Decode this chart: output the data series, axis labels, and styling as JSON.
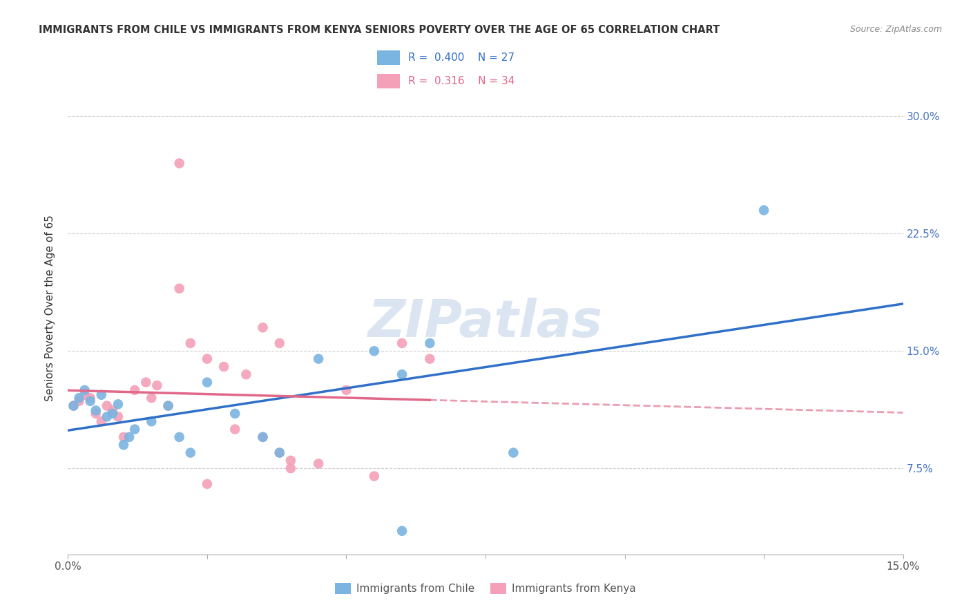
{
  "title": "IMMIGRANTS FROM CHILE VS IMMIGRANTS FROM KENYA SENIORS POVERTY OVER THE AGE OF 65 CORRELATION CHART",
  "source": "Source: ZipAtlas.com",
  "ylabel": "Seniors Poverty Over the Age of 65",
  "xlim": [
    0.0,
    0.15
  ],
  "ylim": [
    0.02,
    0.335
  ],
  "xticks": [
    0.0,
    0.025,
    0.05,
    0.075,
    0.1,
    0.125,
    0.15
  ],
  "xticklabels": [
    "0.0%",
    "",
    "",
    "",
    "",
    "",
    "15.0%"
  ],
  "ytick_positions": [
    0.075,
    0.15,
    0.225,
    0.3
  ],
  "ytick_labels": [
    "7.5%",
    "15.0%",
    "22.5%",
    "30.0%"
  ],
  "chile_color": "#7ab4e0",
  "kenya_color": "#f4a0b8",
  "chile_line_color": "#3070c8",
  "kenya_line_color": "#e06888",
  "legend_r_chile": "R = 0.400",
  "legend_n_chile": "N = 27",
  "legend_r_kenya": "R = 0.316",
  "legend_n_kenya": "N = 34",
  "chile_label": "Immigrants from Chile",
  "kenya_label": "Immigrants from Kenya",
  "watermark": "ZIPatlas",
  "chile_scatter_x": [
    0.001,
    0.002,
    0.003,
    0.004,
    0.005,
    0.006,
    0.007,
    0.008,
    0.009,
    0.01,
    0.011,
    0.012,
    0.015,
    0.018,
    0.02,
    0.022,
    0.025,
    0.03,
    0.035,
    0.038,
    0.045,
    0.055,
    0.06,
    0.065,
    0.08,
    0.125,
    0.06
  ],
  "chile_scatter_y": [
    0.115,
    0.12,
    0.125,
    0.118,
    0.112,
    0.122,
    0.108,
    0.11,
    0.116,
    0.09,
    0.095,
    0.1,
    0.105,
    0.115,
    0.095,
    0.085,
    0.13,
    0.11,
    0.095,
    0.085,
    0.145,
    0.15,
    0.135,
    0.155,
    0.085,
    0.24,
    0.035
  ],
  "kenya_scatter_x": [
    0.001,
    0.002,
    0.003,
    0.004,
    0.005,
    0.006,
    0.007,
    0.008,
    0.009,
    0.01,
    0.012,
    0.014,
    0.015,
    0.016,
    0.018,
    0.02,
    0.022,
    0.025,
    0.028,
    0.03,
    0.032,
    0.035,
    0.038,
    0.04,
    0.045,
    0.05,
    0.055,
    0.06,
    0.065,
    0.035,
    0.038,
    0.04,
    0.025,
    0.02
  ],
  "kenya_scatter_y": [
    0.115,
    0.118,
    0.122,
    0.12,
    0.11,
    0.105,
    0.115,
    0.112,
    0.108,
    0.095,
    0.125,
    0.13,
    0.12,
    0.128,
    0.115,
    0.19,
    0.155,
    0.145,
    0.14,
    0.1,
    0.135,
    0.095,
    0.085,
    0.08,
    0.078,
    0.125,
    0.07,
    0.155,
    0.145,
    0.165,
    0.155,
    0.075,
    0.065,
    0.27
  ]
}
